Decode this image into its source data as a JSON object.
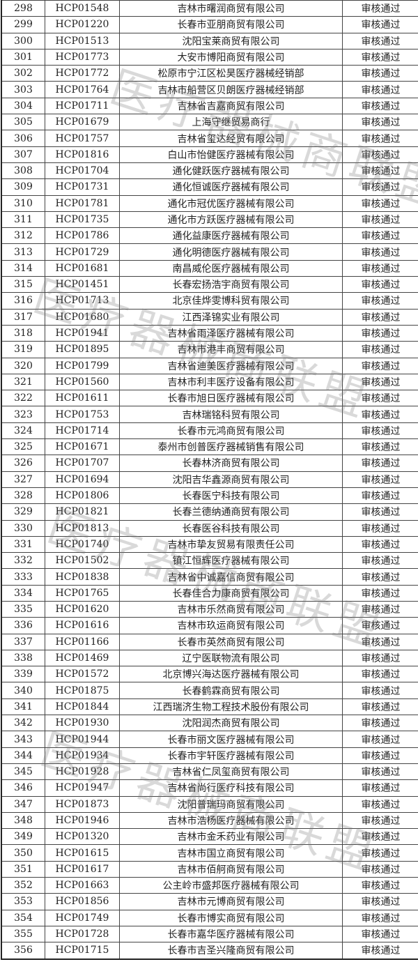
{
  "watermark": "医疗器械商联盟",
  "status_label": "审核通过",
  "rows": [
    [
      "298",
      "HCP01548",
      "吉林市曙润商贸有限公司",
      "审核通过"
    ],
    [
      "299",
      "HCP01220",
      "长春市亚朋商贸有限公司",
      "审核通过"
    ],
    [
      "300",
      "HCP01513",
      "沈阳宝莱商贸有限公司",
      "审核通过"
    ],
    [
      "301",
      "HCP01773",
      "大安市博阳商贸有限公司",
      "审核通过"
    ],
    [
      "302",
      "HCP01772",
      "松原市宁江区松昊医疗器械经销部",
      "审核通过"
    ],
    [
      "303",
      "HCP01764",
      "吉林市船营区贝朗医疗器械经销部",
      "审核通过"
    ],
    [
      "304",
      "HCP01711",
      "吉林省吉嘉商贸有限公司",
      "审核通过"
    ],
    [
      "305",
      "HCP01679",
      "上海守继贸易商行",
      "审核通过"
    ],
    [
      "306",
      "HCP01757",
      "吉林省玺达经贸有限公司",
      "审核通过"
    ],
    [
      "307",
      "HCP01816",
      "白山市怡健医疗器械有限公司",
      "审核通过"
    ],
    [
      "308",
      "HCP01704",
      "通化健跃医疗器械有限公司",
      "审核通过"
    ],
    [
      "309",
      "HCP01731",
      "通化恒诚医疗器械有限公司",
      "审核通过"
    ],
    [
      "310",
      "HCP01781",
      "通化市冠优医疗器械有限公司",
      "审核通过"
    ],
    [
      "311",
      "HCP01735",
      "通化市方跃医疗器械有限公司",
      "审核通过"
    ],
    [
      "312",
      "HCP01786",
      "通化益康医疗器械有限公司",
      "审核通过"
    ],
    [
      "313",
      "HCP01729",
      "通化明德医疗器械有限公司",
      "审核通过"
    ],
    [
      "314",
      "HCP01681",
      "南昌威伦医疗器械有限公司",
      "审核通过"
    ],
    [
      "315",
      "HCP01451",
      "长春宏扬浩宇商贸有限公司",
      "审核通过"
    ],
    [
      "316",
      "HCP01713",
      "北京佳烨雯博科贸有限公司",
      "审核通过"
    ],
    [
      "317",
      "HCP01680",
      "江西泽锦实业有限公司",
      "审核通过"
    ],
    [
      "318",
      "HCP01941",
      "吉林省雨泽医疗器械有限公司",
      "审核通过"
    ],
    [
      "319",
      "HCP01895",
      "吉林市港丰商贸有限公司",
      "审核通过"
    ],
    [
      "320",
      "HCP01799",
      "吉林省迪美医疗器械有限公司",
      "审核通过"
    ],
    [
      "321",
      "HCP01560",
      "吉林市利丰医疗设备有限公司",
      "审核通过"
    ],
    [
      "322",
      "HCP01611",
      "长春市旭日医疗器械有限公司",
      "审核通过"
    ],
    [
      "323",
      "HCP01753",
      "吉林瑞铭科贸有限公司",
      "审核通过"
    ],
    [
      "324",
      "HCP01714",
      "长春市元鸿商贸有限公司",
      "审核通过"
    ],
    [
      "325",
      "HCP01671",
      "泰州市创普医疗器械销售有限公司",
      "审核通过"
    ],
    [
      "326",
      "HCP01707",
      "长春林济商贸有限公司",
      "审核通过"
    ],
    [
      "327",
      "HCP01694",
      "沈阳吉华鑫源商贸有限公司",
      "审核通过"
    ],
    [
      "328",
      "HCP01806",
      "长春医宁科技有限公司",
      "审核通过"
    ],
    [
      "329",
      "HCP01821",
      "长春兰德纳通商贸有限公司",
      "审核通过"
    ],
    [
      "330",
      "HCP01813",
      "长春医谷科技有限公司",
      "审核通过"
    ],
    [
      "331",
      "HCP01740",
      "吉林市挚友贸易有限责任公司",
      "审核通过"
    ],
    [
      "332",
      "HCP01502",
      "镇江恒辉医疗器械有限公司",
      "审核通过"
    ],
    [
      "333",
      "HCP01838",
      "吉林省中诚嘉信商贸有限公司",
      "审核通过"
    ],
    [
      "334",
      "HCP01765",
      "长春佳合力康商贸有限公司",
      "审核通过"
    ],
    [
      "335",
      "HCP01620",
      "吉林市乐然商贸有限公司",
      "审核通过"
    ],
    [
      "336",
      "HCP01616",
      "吉林市玖运商贸有限公司",
      "审核通过"
    ],
    [
      "337",
      "HCP01166",
      "长春市英然商贸有限公司",
      "审核通过"
    ],
    [
      "338",
      "HCP01469",
      "辽宁医联物流有限公司",
      "审核通过"
    ],
    [
      "339",
      "HCP01572",
      "北京博兴海达医疗器械有限公司",
      "审核通过"
    ],
    [
      "340",
      "HCP01875",
      "长春鹤霖商贸有限公司",
      "审核通过"
    ],
    [
      "341",
      "HCP01844",
      "江西瑞济生物工程技术股份有限公司",
      "审核通过"
    ],
    [
      "342",
      "HCP01930",
      "沈阳润杰商贸有限公司",
      "审核通过"
    ],
    [
      "343",
      "HCP01944",
      "长春市丽文医疗器械有限公司",
      "审核通过"
    ],
    [
      "344",
      "HCP01934",
      "长春市宇轩医疗器械有限公司",
      "审核通过"
    ],
    [
      "345",
      "HCP01928",
      "吉林省仁凤玺商贸有限公司",
      "审核通过"
    ],
    [
      "346",
      "HCP01947",
      "吉林省尚行医疗科技有限公司",
      "审核通过"
    ],
    [
      "347",
      "HCP01873",
      "沈阳普瑞玛商贸有限公司",
      "审核通过"
    ],
    [
      "348",
      "HCP01946",
      "吉林市浩杨医疗器械有限公司",
      "审核通过"
    ],
    [
      "349",
      "HCP01320",
      "吉林市金禾药业有限公司",
      "审核通过"
    ],
    [
      "350",
      "HCP01615",
      "吉林市国立商贸有限公司",
      "审核通过"
    ],
    [
      "351",
      "HCP01617",
      "吉林市佰舸商贸有限公司",
      "审核通过"
    ],
    [
      "352",
      "HCP01663",
      "公主岭市盛邦医疗器械有限公司",
      "审核通过"
    ],
    [
      "353",
      "HCP01856",
      "吉林市元博商贸有限公司",
      "审核通过"
    ],
    [
      "354",
      "HCP01749",
      "长春市博实商贸有限公司",
      "审核通过"
    ],
    [
      "355",
      "HCP01728",
      "长春市嘉华医疗器械有限公司",
      "审核通过"
    ],
    [
      "356",
      "HCP01715",
      "长春市吉圣兴隆商贸有限公司",
      "审核通过"
    ]
  ]
}
